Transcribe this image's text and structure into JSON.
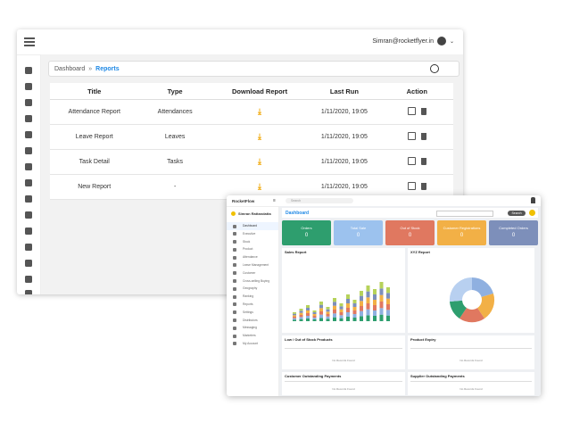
{
  "win1": {
    "user_email": "Simran@rocketflyer.in",
    "breadcrumb": {
      "parent": "Dashboard",
      "current": "Reports"
    },
    "columns": [
      "Title",
      "Type",
      "Download Report",
      "Last Run",
      "Action"
    ],
    "rows": [
      {
        "title": "Attendance Report",
        "type": "Attendances",
        "last_run": "1/11/2020, 19:05"
      },
      {
        "title": "Leave Report",
        "type": "Leaves",
        "last_run": "1/11/2020, 19:05"
      },
      {
        "title": "Task Detail",
        "type": "Tasks",
        "last_run": "1/11/2020, 19:05"
      },
      {
        "title": "New Report",
        "type": "-",
        "last_run": "1/11/2020, 19:05"
      }
    ]
  },
  "win2": {
    "brand": "RocketFlow",
    "search_placeholder": "Search",
    "user_name": "Simran Rattandatta",
    "nav": [
      "Dashboard",
      "Executive",
      "Stock",
      "Product",
      "Attendance",
      "Leave Management",
      "Customer",
      "Cross-selling Buying",
      "Geography",
      "Ranking",
      "Reports",
      "Settings",
      "Distributors",
      "Messaging",
      "Marketers",
      "My Account"
    ],
    "dashboard_title": "Dashboard",
    "search_button": "Search",
    "cards": [
      {
        "label": "Orders",
        "value": "0",
        "color": "#2e9e6e"
      },
      {
        "label": "Total Sale",
        "value": "0",
        "color": "#9cc2ee"
      },
      {
        "label": "Out of Stock",
        "value": "0",
        "color": "#e07860"
      },
      {
        "label": "Customer Registrations",
        "value": "0",
        "color": "#f2b046"
      },
      {
        "label": "Completed Orders",
        "value": "0",
        "color": "#7d8fba"
      }
    ],
    "panels": {
      "sales": "Sales Report",
      "xyz": "XYZ Report",
      "low_stock": "Low / Out of Stock Products",
      "expiry": "Product Expiry",
      "cust_pay": "Customer Outstanding Payments",
      "supp_pay": "Supplier Outstanding Payments",
      "no_data": "No Records Found"
    }
  }
}
